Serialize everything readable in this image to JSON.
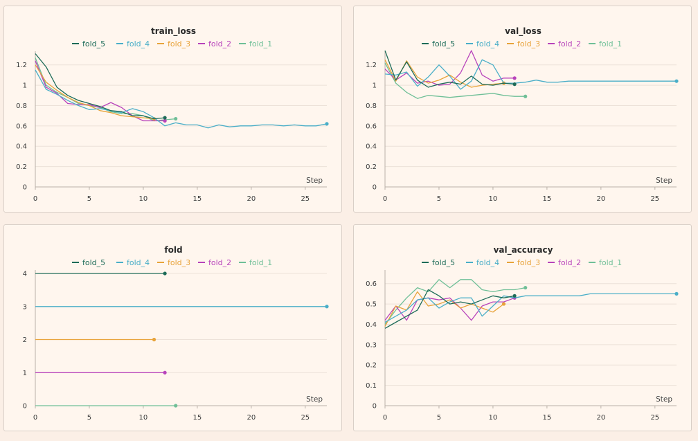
{
  "colors": {
    "fold_5": "#1d6b58",
    "fold_4": "#4aaec8",
    "fold_3": "#e8a33a",
    "fold_2": "#b843bb",
    "fold_1": "#6fbf97"
  },
  "chart_data": [
    {
      "type": "line",
      "title": "train_loss",
      "xlabel": "Step",
      "xlim": [
        0,
        27
      ],
      "ylim": [
        0,
        1.3
      ],
      "xticks": [
        "0",
        "5",
        "10",
        "15",
        "20",
        "25"
      ],
      "yticks": [
        "0",
        "0.2",
        "0.4",
        "0.6",
        "0.8",
        "1",
        "1.2"
      ],
      "legend": [
        "fold_5",
        "fold_4",
        "fold_3",
        "fold_2",
        "fold_1"
      ],
      "series": [
        {
          "name": "fold_5",
          "x": [
            0,
            1,
            2,
            3,
            4,
            5,
            6,
            7,
            8,
            9,
            10,
            11,
            12
          ],
          "y": [
            1.31,
            1.18,
            0.98,
            0.9,
            0.85,
            0.82,
            0.79,
            0.75,
            0.74,
            0.7,
            0.7,
            0.67,
            0.68
          ]
        },
        {
          "name": "fold_4",
          "x": [
            0,
            1,
            2,
            3,
            4,
            5,
            6,
            7,
            8,
            9,
            10,
            11,
            12,
            13,
            14,
            15,
            16,
            17,
            18,
            19,
            20,
            21,
            22,
            23,
            24,
            25,
            26,
            27
          ],
          "y": [
            1.15,
            0.96,
            0.91,
            0.85,
            0.8,
            0.76,
            0.77,
            0.75,
            0.73,
            0.77,
            0.74,
            0.68,
            0.6,
            0.63,
            0.61,
            0.61,
            0.58,
            0.61,
            0.59,
            0.6,
            0.6,
            0.61,
            0.61,
            0.6,
            0.61,
            0.6,
            0.6,
            0.62
          ]
        },
        {
          "name": "fold_3",
          "x": [
            0,
            1,
            2,
            3,
            4,
            5,
            6,
            7,
            8,
            9,
            10,
            11
          ],
          "y": [
            1.2,
            1.03,
            0.95,
            0.88,
            0.83,
            0.8,
            0.75,
            0.73,
            0.7,
            0.69,
            0.68,
            0.67
          ]
        },
        {
          "name": "fold_2",
          "x": [
            0,
            1,
            2,
            3,
            4,
            5,
            6,
            7,
            8,
            9,
            10,
            11,
            12
          ],
          "y": [
            1.24,
            0.98,
            0.92,
            0.82,
            0.81,
            0.81,
            0.78,
            0.83,
            0.78,
            0.7,
            0.65,
            0.65,
            0.65
          ]
        },
        {
          "name": "fold_1",
          "x": [
            0,
            1,
            2,
            3,
            4,
            5,
            6,
            7,
            8,
            9,
            10,
            11,
            12,
            13
          ],
          "y": [
            1.27,
            1.0,
            0.93,
            0.88,
            0.82,
            0.8,
            0.78,
            0.74,
            0.72,
            0.72,
            0.7,
            0.65,
            0.66,
            0.67
          ]
        }
      ]
    },
    {
      "type": "line",
      "title": "val_loss",
      "xlabel": "Step",
      "xlim": [
        0,
        27
      ],
      "ylim": [
        0,
        1.3
      ],
      "xticks": [
        "0",
        "5",
        "10",
        "15",
        "20",
        "25"
      ],
      "yticks": [
        "0",
        "0.2",
        "0.4",
        "0.6",
        "0.8",
        "1",
        "1.2"
      ],
      "legend": [
        "fold_5",
        "fold_4",
        "fold_3",
        "fold_2",
        "fold_1"
      ],
      "series": [
        {
          "name": "fold_5",
          "x": [
            0,
            1,
            2,
            3,
            4,
            5,
            6,
            7,
            8,
            9,
            10,
            11,
            12
          ],
          "y": [
            1.34,
            1.05,
            1.23,
            1.05,
            0.98,
            1.01,
            1.03,
            1.01,
            1.09,
            1.01,
            1.0,
            1.02,
            1.01
          ]
        },
        {
          "name": "fold_4",
          "x": [
            0,
            1,
            2,
            3,
            4,
            5,
            6,
            7,
            8,
            9,
            10,
            11,
            12,
            13,
            14,
            15,
            16,
            17,
            18,
            19,
            20,
            21,
            22,
            23,
            24,
            25,
            26,
            27
          ],
          "y": [
            1.11,
            1.1,
            1.13,
            0.99,
            1.08,
            1.2,
            1.09,
            0.96,
            1.04,
            1.25,
            1.2,
            1.02,
            1.02,
            1.03,
            1.05,
            1.03,
            1.03,
            1.04,
            1.04,
            1.04,
            1.04,
            1.04,
            1.04,
            1.04,
            1.04,
            1.04,
            1.04,
            1.04
          ]
        },
        {
          "name": "fold_3",
          "x": [
            0,
            1,
            2,
            3,
            4,
            5,
            6,
            7,
            8,
            9,
            10,
            11
          ],
          "y": [
            1.25,
            1.04,
            1.24,
            1.08,
            1.02,
            1.05,
            1.1,
            1.03,
            0.98,
            1.0,
            1.01,
            1.02
          ]
        },
        {
          "name": "fold_2",
          "x": [
            0,
            1,
            2,
            3,
            4,
            5,
            6,
            7,
            8,
            9,
            10,
            11,
            12
          ],
          "y": [
            1.16,
            1.05,
            1.12,
            1.02,
            1.04,
            1.0,
            1.01,
            1.12,
            1.34,
            1.1,
            1.04,
            1.07,
            1.07
          ]
        },
        {
          "name": "fold_1",
          "x": [
            0,
            1,
            2,
            3,
            4,
            5,
            6,
            7,
            8,
            9,
            10,
            11,
            12,
            13
          ],
          "y": [
            1.22,
            1.02,
            0.93,
            0.87,
            0.9,
            0.89,
            0.88,
            0.89,
            0.9,
            0.91,
            0.92,
            0.9,
            0.89,
            0.89
          ]
        }
      ]
    },
    {
      "type": "line",
      "title": "fold",
      "xlabel": "Step",
      "xlim": [
        0,
        27
      ],
      "ylim": [
        0,
        4
      ],
      "xticks": [
        "0",
        "5",
        "10",
        "15",
        "20",
        "25"
      ],
      "yticks": [
        "0",
        "1",
        "2",
        "3",
        "4"
      ],
      "legend": [
        "fold_5",
        "fold_4",
        "fold_3",
        "fold_2",
        "fold_1"
      ],
      "series": [
        {
          "name": "fold_5",
          "x": [
            0,
            12
          ],
          "y": [
            4,
            4
          ]
        },
        {
          "name": "fold_4",
          "x": [
            0,
            27
          ],
          "y": [
            3,
            3
          ]
        },
        {
          "name": "fold_3",
          "x": [
            0,
            11
          ],
          "y": [
            2,
            2
          ]
        },
        {
          "name": "fold_2",
          "x": [
            0,
            12
          ],
          "y": [
            1,
            1
          ]
        },
        {
          "name": "fold_1",
          "x": [
            0,
            13
          ],
          "y": [
            0,
            0
          ]
        }
      ]
    },
    {
      "type": "line",
      "title": "val_accuracy",
      "xlabel": "Step",
      "xlim": [
        0,
        27
      ],
      "ylim": [
        0,
        0.65
      ],
      "xticks": [
        "0",
        "5",
        "10",
        "15",
        "20",
        "25"
      ],
      "yticks": [
        "0",
        "0.1",
        "0.2",
        "0.3",
        "0.4",
        "0.5",
        "0.6"
      ],
      "legend": [
        "fold_5",
        "fold_4",
        "fold_3",
        "fold_2",
        "fold_1"
      ],
      "series": [
        {
          "name": "fold_5",
          "x": [
            0,
            1,
            2,
            3,
            4,
            5,
            6,
            7,
            8,
            9,
            10,
            11,
            12
          ],
          "y": [
            0.38,
            0.41,
            0.44,
            0.47,
            0.57,
            0.54,
            0.5,
            0.51,
            0.5,
            0.52,
            0.54,
            0.53,
            0.54
          ]
        },
        {
          "name": "fold_4",
          "x": [
            0,
            1,
            2,
            3,
            4,
            5,
            6,
            7,
            8,
            9,
            10,
            11,
            12,
            13,
            14,
            15,
            16,
            17,
            18,
            19,
            20,
            21,
            22,
            23,
            24,
            25,
            26,
            27
          ],
          "y": [
            0.41,
            0.44,
            0.47,
            0.52,
            0.53,
            0.48,
            0.51,
            0.53,
            0.53,
            0.44,
            0.49,
            0.54,
            0.53,
            0.54,
            0.54,
            0.54,
            0.54,
            0.54,
            0.54,
            0.55,
            0.55,
            0.55,
            0.55,
            0.55,
            0.55,
            0.55,
            0.55,
            0.55
          ]
        },
        {
          "name": "fold_3",
          "x": [
            0,
            1,
            2,
            3,
            4,
            5,
            6,
            7,
            8,
            9,
            10,
            11
          ],
          "y": [
            0.39,
            0.49,
            0.47,
            0.56,
            0.49,
            0.5,
            0.52,
            0.48,
            0.5,
            0.48,
            0.46,
            0.5
          ]
        },
        {
          "name": "fold_2",
          "x": [
            0,
            1,
            2,
            3,
            4,
            5,
            6,
            7,
            8,
            9,
            10,
            11,
            12
          ],
          "y": [
            0.42,
            0.49,
            0.42,
            0.52,
            0.53,
            0.52,
            0.53,
            0.48,
            0.42,
            0.49,
            0.51,
            0.51,
            0.53
          ]
        },
        {
          "name": "fold_1",
          "x": [
            0,
            1,
            2,
            3,
            4,
            5,
            6,
            7,
            8,
            9,
            10,
            11,
            12,
            13
          ],
          "y": [
            0.4,
            0.47,
            0.53,
            0.58,
            0.56,
            0.62,
            0.58,
            0.62,
            0.62,
            0.57,
            0.56,
            0.57,
            0.57,
            0.58
          ]
        }
      ]
    }
  ]
}
